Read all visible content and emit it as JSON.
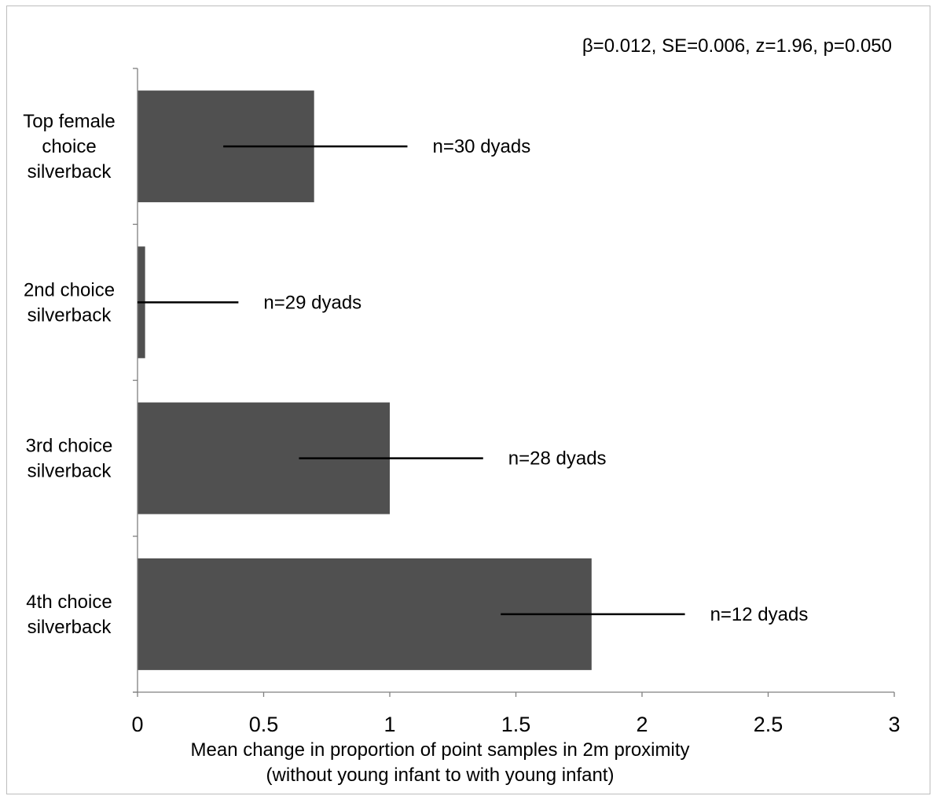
{
  "chart_data": {
    "type": "bar",
    "orientation": "horizontal",
    "categories": [
      [
        "Top female",
        "choice",
        "silverback"
      ],
      [
        "2nd choice",
        "silverback"
      ],
      [
        "3rd choice",
        "silverback"
      ],
      [
        "4th choice",
        "silverback"
      ]
    ],
    "values": [
      0.7,
      0.03,
      1.0,
      1.8
    ],
    "error": [
      {
        "low": 0.34,
        "high": 1.07
      },
      {
        "low": 0.0,
        "high": 0.4
      },
      {
        "low": 0.64,
        "high": 1.37
      },
      {
        "low": 1.44,
        "high": 2.17
      }
    ],
    "n_labels": [
      "n=30 dyads",
      "n=29 dyads",
      "n=28 dyads",
      "n=12 dyads"
    ],
    "xlim": [
      0,
      3
    ],
    "xticks": [
      0,
      0.5,
      1,
      1.5,
      2,
      2.5,
      3
    ],
    "xtick_labels": [
      "0",
      "0.5",
      "1",
      "1.5",
      "2",
      "2.5",
      "3"
    ],
    "xlabel": [
      "Mean change in proportion of point samples in 2m proximity",
      "(without young infant to with young infant)"
    ],
    "ylabel": "",
    "title": "",
    "stats_annotation": "β=0.012, SE=0.006, z=1.96, p=0.050",
    "grid": false,
    "legend": "none",
    "colors": {
      "bar": "#505050",
      "axis": "#808080",
      "errorbar": "#000000"
    }
  }
}
